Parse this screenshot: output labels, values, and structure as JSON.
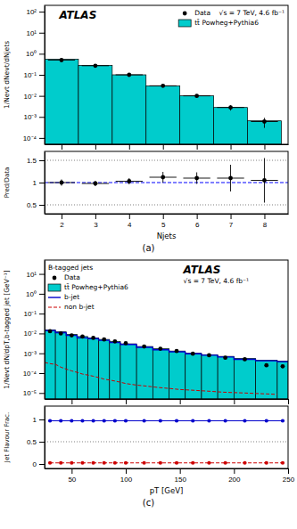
{
  "chart_data": [
    {
      "type": "histogram",
      "y_label": "1/Nevt dNevt/dNjets",
      "log": "y",
      "xlim": [
        1.5,
        8.7
      ],
      "xticks": [
        2,
        3,
        4,
        5,
        6,
        7,
        8
      ],
      "ylim": [
        5e-05,
        200
      ],
      "yticks": [
        {
          "value": 0.0001,
          "label": "10⁻⁴"
        },
        {
          "value": 0.001,
          "label": "10⁻³"
        },
        {
          "value": 0.01,
          "label": "10⁻²"
        },
        {
          "value": 0.1,
          "label": "10⁻¹"
        },
        {
          "value": 1,
          "label": "10⁰"
        },
        {
          "value": 10,
          "label": "10¹"
        },
        {
          "value": 100,
          "label": "10²"
        }
      ],
      "tick_labels": "y",
      "grid": false,
      "legend": "upper right",
      "annotations": [
        {
          "text": "ATLAS"
        }
      ],
      "series": [
        {
          "name": "Data    √s = 7 TeV, 4.6 fb⁻¹",
          "type": "scatter",
          "marker": "circle",
          "color": "#000000",
          "x": [
            2,
            3,
            4,
            5,
            6,
            7,
            8
          ],
          "values": [
            0.5,
            0.27,
            0.1,
            0.03,
            0.01,
            0.0028,
            0.0006
          ],
          "error_lo": [
            0.04,
            0.015,
            0.007,
            0.003,
            0.0015,
            0.0008,
            0.0003
          ],
          "error_hi": [
            0.04,
            0.015,
            0.007,
            0.003,
            0.0015,
            0.0008,
            0.0003
          ],
          "x_error": [
            0.4,
            0.4,
            0.4,
            0.4,
            0.4,
            0.4,
            0.4
          ]
        },
        {
          "name": "tt̄ Powheg+Pythia6",
          "type": "histogram",
          "color": "#00CCCC",
          "edge_color": "#000000",
          "bins": [
            1.5,
            2.5,
            3.5,
            4.5,
            5.5,
            6.5,
            7.5,
            8.5
          ],
          "values": [
            0.55,
            0.28,
            0.1,
            0.03,
            0.01,
            0.0028,
            0.00065
          ]
        }
      ]
    },
    {
      "type": "scatter",
      "x_label": "Njets",
      "y_label": "Pred/Data",
      "caption": "(a)",
      "xlim": [
        1.5,
        8.7
      ],
      "xticks": [
        2,
        3,
        4,
        5,
        6,
        7,
        8
      ],
      "ylim": [
        0.3,
        1.7
      ],
      "yticks": [
        0.5,
        1,
        1.5
      ],
      "grid": false,
      "hlines": [
        {
          "value": 1.0,
          "color": "blue",
          "line_style": "dashed"
        },
        {
          "value": 0.5,
          "color": "gray",
          "line_style": "dotted"
        },
        {
          "value": 1.5,
          "color": "gray",
          "line_style": "dotted"
        }
      ],
      "series": [
        {
          "color": "black",
          "marker": "circle",
          "x": [
            2,
            3,
            4,
            5,
            6,
            7,
            8
          ],
          "values": [
            1.0,
            0.98,
            1.03,
            1.12,
            1.1,
            1.1,
            1.05
          ],
          "error": [
            0.07,
            0.06,
            0.07,
            0.12,
            0.13,
            0.3,
            0.5
          ],
          "x_error": [
            0.4,
            0.4,
            0.4,
            0.4,
            0.4,
            0.4,
            0.4
          ]
        }
      ]
    },
    {
      "type": "histogram",
      "y_label": "1/Nevt dN/dpT,b-tagged jet [GeV⁻¹]",
      "log": "y",
      "xlim": [
        25,
        250
      ],
      "xticks": [
        50,
        100,
        150,
        200,
        250
      ],
      "ylim": [
        5e-06,
        50
      ],
      "yticks": [
        {
          "value": 1e-05,
          "label": "10⁻⁵"
        },
        {
          "value": 0.0001,
          "label": "10⁻⁴"
        },
        {
          "value": 0.001,
          "label": "10⁻³"
        },
        {
          "value": 0.01,
          "label": "10⁻²"
        },
        {
          "value": 0.1,
          "label": "10⁻¹"
        },
        {
          "value": 1,
          "label": "10⁰"
        },
        {
          "value": 10,
          "label": "10¹"
        }
      ],
      "tick_labels": "y",
      "grid": false,
      "legend": "upper left",
      "legend_title": "B-tagged jets",
      "annotations": [
        {
          "text": "ATLAS"
        },
        {
          "text": "√s = 7 TeV, 4.6 fb⁻¹"
        }
      ],
      "series": [
        {
          "name": "Data",
          "type": "scatter",
          "marker": "circle",
          "color": "black",
          "x": [
            30,
            40,
            50,
            60,
            70,
            80,
            90,
            100,
            117,
            132,
            147,
            162,
            177,
            192,
            210,
            230,
            245
          ],
          "values": [
            0.013,
            0.01,
            0.008,
            0.007,
            0.006,
            0.005,
            0.004,
            0.0032,
            0.0022,
            0.0017,
            0.0013,
            0.00095,
            0.0008,
            0.0006,
            0.0005,
            0.00025,
            0.00022
          ],
          "error_lo": [
            0.001,
            0.001,
            0.0006,
            0.0005,
            0.0004,
            0.0004,
            0.0003,
            0.0003,
            0.0002,
            0.00015,
            0.00012,
            0.0001,
            9e-05,
            7e-05,
            6e-05,
            4e-05,
            4e-05
          ],
          "error_hi": [
            0.001,
            0.001,
            0.0006,
            0.0005,
            0.0004,
            0.0004,
            0.0003,
            0.0003,
            0.0002,
            0.00015,
            0.00012,
            0.0001,
            9e-05,
            7e-05,
            6e-05,
            4e-05,
            4e-05
          ]
        },
        {
          "name": "tt̄ Powheg+Pythia6",
          "type": "histogram",
          "color": "#00CCCC",
          "edge_color": "#000000",
          "bins": [
            25,
            35,
            45,
            55,
            65,
            75,
            85,
            95,
            110,
            125,
            140,
            155,
            170,
            185,
            200,
            220,
            240,
            250
          ],
          "values": [
            0.015,
            0.012,
            0.009,
            0.007,
            0.006,
            0.005,
            0.004,
            0.003,
            0.0022,
            0.0017,
            0.0013,
            0.001,
            0.00085,
            0.0007,
            0.00055,
            0.00045,
            0.0004
          ]
        },
        {
          "name": "b-jet",
          "type": "step",
          "color": "#0000CC",
          "bins": [
            25,
            35,
            45,
            55,
            65,
            75,
            85,
            95,
            110,
            125,
            140,
            155,
            170,
            185,
            200,
            220,
            240,
            250
          ],
          "values": [
            0.014,
            0.011,
            0.008,
            0.006,
            0.0055,
            0.0045,
            0.0035,
            0.0028,
            0.002,
            0.0015,
            0.0012,
            0.00095,
            0.0008,
            0.00065,
            0.0005,
            0.00042,
            0.00038
          ]
        },
        {
          "name": "non b-jet",
          "type": "line",
          "color": "#CC0000",
          "line_style": "dashed",
          "x": [
            25,
            30,
            35,
            40,
            45,
            50,
            55,
            60,
            65,
            70,
            75,
            80,
            85,
            90,
            95,
            100,
            110,
            120,
            130,
            140,
            150,
            160,
            170,
            180,
            190,
            200,
            210,
            220,
            230,
            240
          ],
          "values": [
            0.00035,
            0.0003,
            0.00028,
            0.0002,
            0.00016,
            0.00013,
            0.00011,
            9e-05,
            8e-05,
            7e-05,
            6e-05,
            5e-05,
            4.5e-05,
            4e-05,
            3.5e-05,
            3e-05,
            2.5e-05,
            2.2e-05,
            1.9e-05,
            1.7e-05,
            1.5e-05,
            1.4e-05,
            1.3e-05,
            1.2e-05,
            1.1e-05,
            1.05e-05,
            1e-05,
            9.5e-06,
            9e-06,
            8.5e-06
          ]
        }
      ]
    },
    {
      "type": "line",
      "x_label": "pT [GeV]",
      "y_label": "Jet Flavour Frac.",
      "caption": "(c)",
      "xlim": [
        25,
        250
      ],
      "xticks": [
        50,
        100,
        150,
        200,
        250
      ],
      "ylim": [
        -0.1,
        1.3
      ],
      "yticks": [
        0,
        0.5,
        1
      ],
      "grid": false,
      "hlines": [
        {
          "value": 0.5,
          "color": "gray",
          "line_style": "dotted"
        }
      ],
      "series": [
        {
          "color": "#0000CC",
          "marker": "circle",
          "line_style": "solid",
          "x": [
            30,
            40,
            50,
            60,
            70,
            80,
            90,
            100,
            117,
            132,
            147,
            162,
            177,
            192,
            210,
            230,
            245
          ],
          "values": [
            0.97,
            0.97,
            0.97,
            0.97,
            0.97,
            0.97,
            0.97,
            0.97,
            0.97,
            0.97,
            0.97,
            0.97,
            0.97,
            0.97,
            0.97,
            0.97,
            0.97
          ]
        },
        {
          "color": "#CC0000",
          "marker": "circle",
          "line_style": "dashed",
          "x": [
            30,
            40,
            50,
            60,
            70,
            80,
            90,
            100,
            117,
            132,
            147,
            162,
            177,
            192,
            210,
            230,
            245
          ],
          "values": [
            0.025,
            0.025,
            0.025,
            0.025,
            0.025,
            0.025,
            0.025,
            0.025,
            0.025,
            0.025,
            0.025,
            0.025,
            0.025,
            0.025,
            0.025,
            0.025,
            0.025
          ]
        }
      ]
    }
  ]
}
